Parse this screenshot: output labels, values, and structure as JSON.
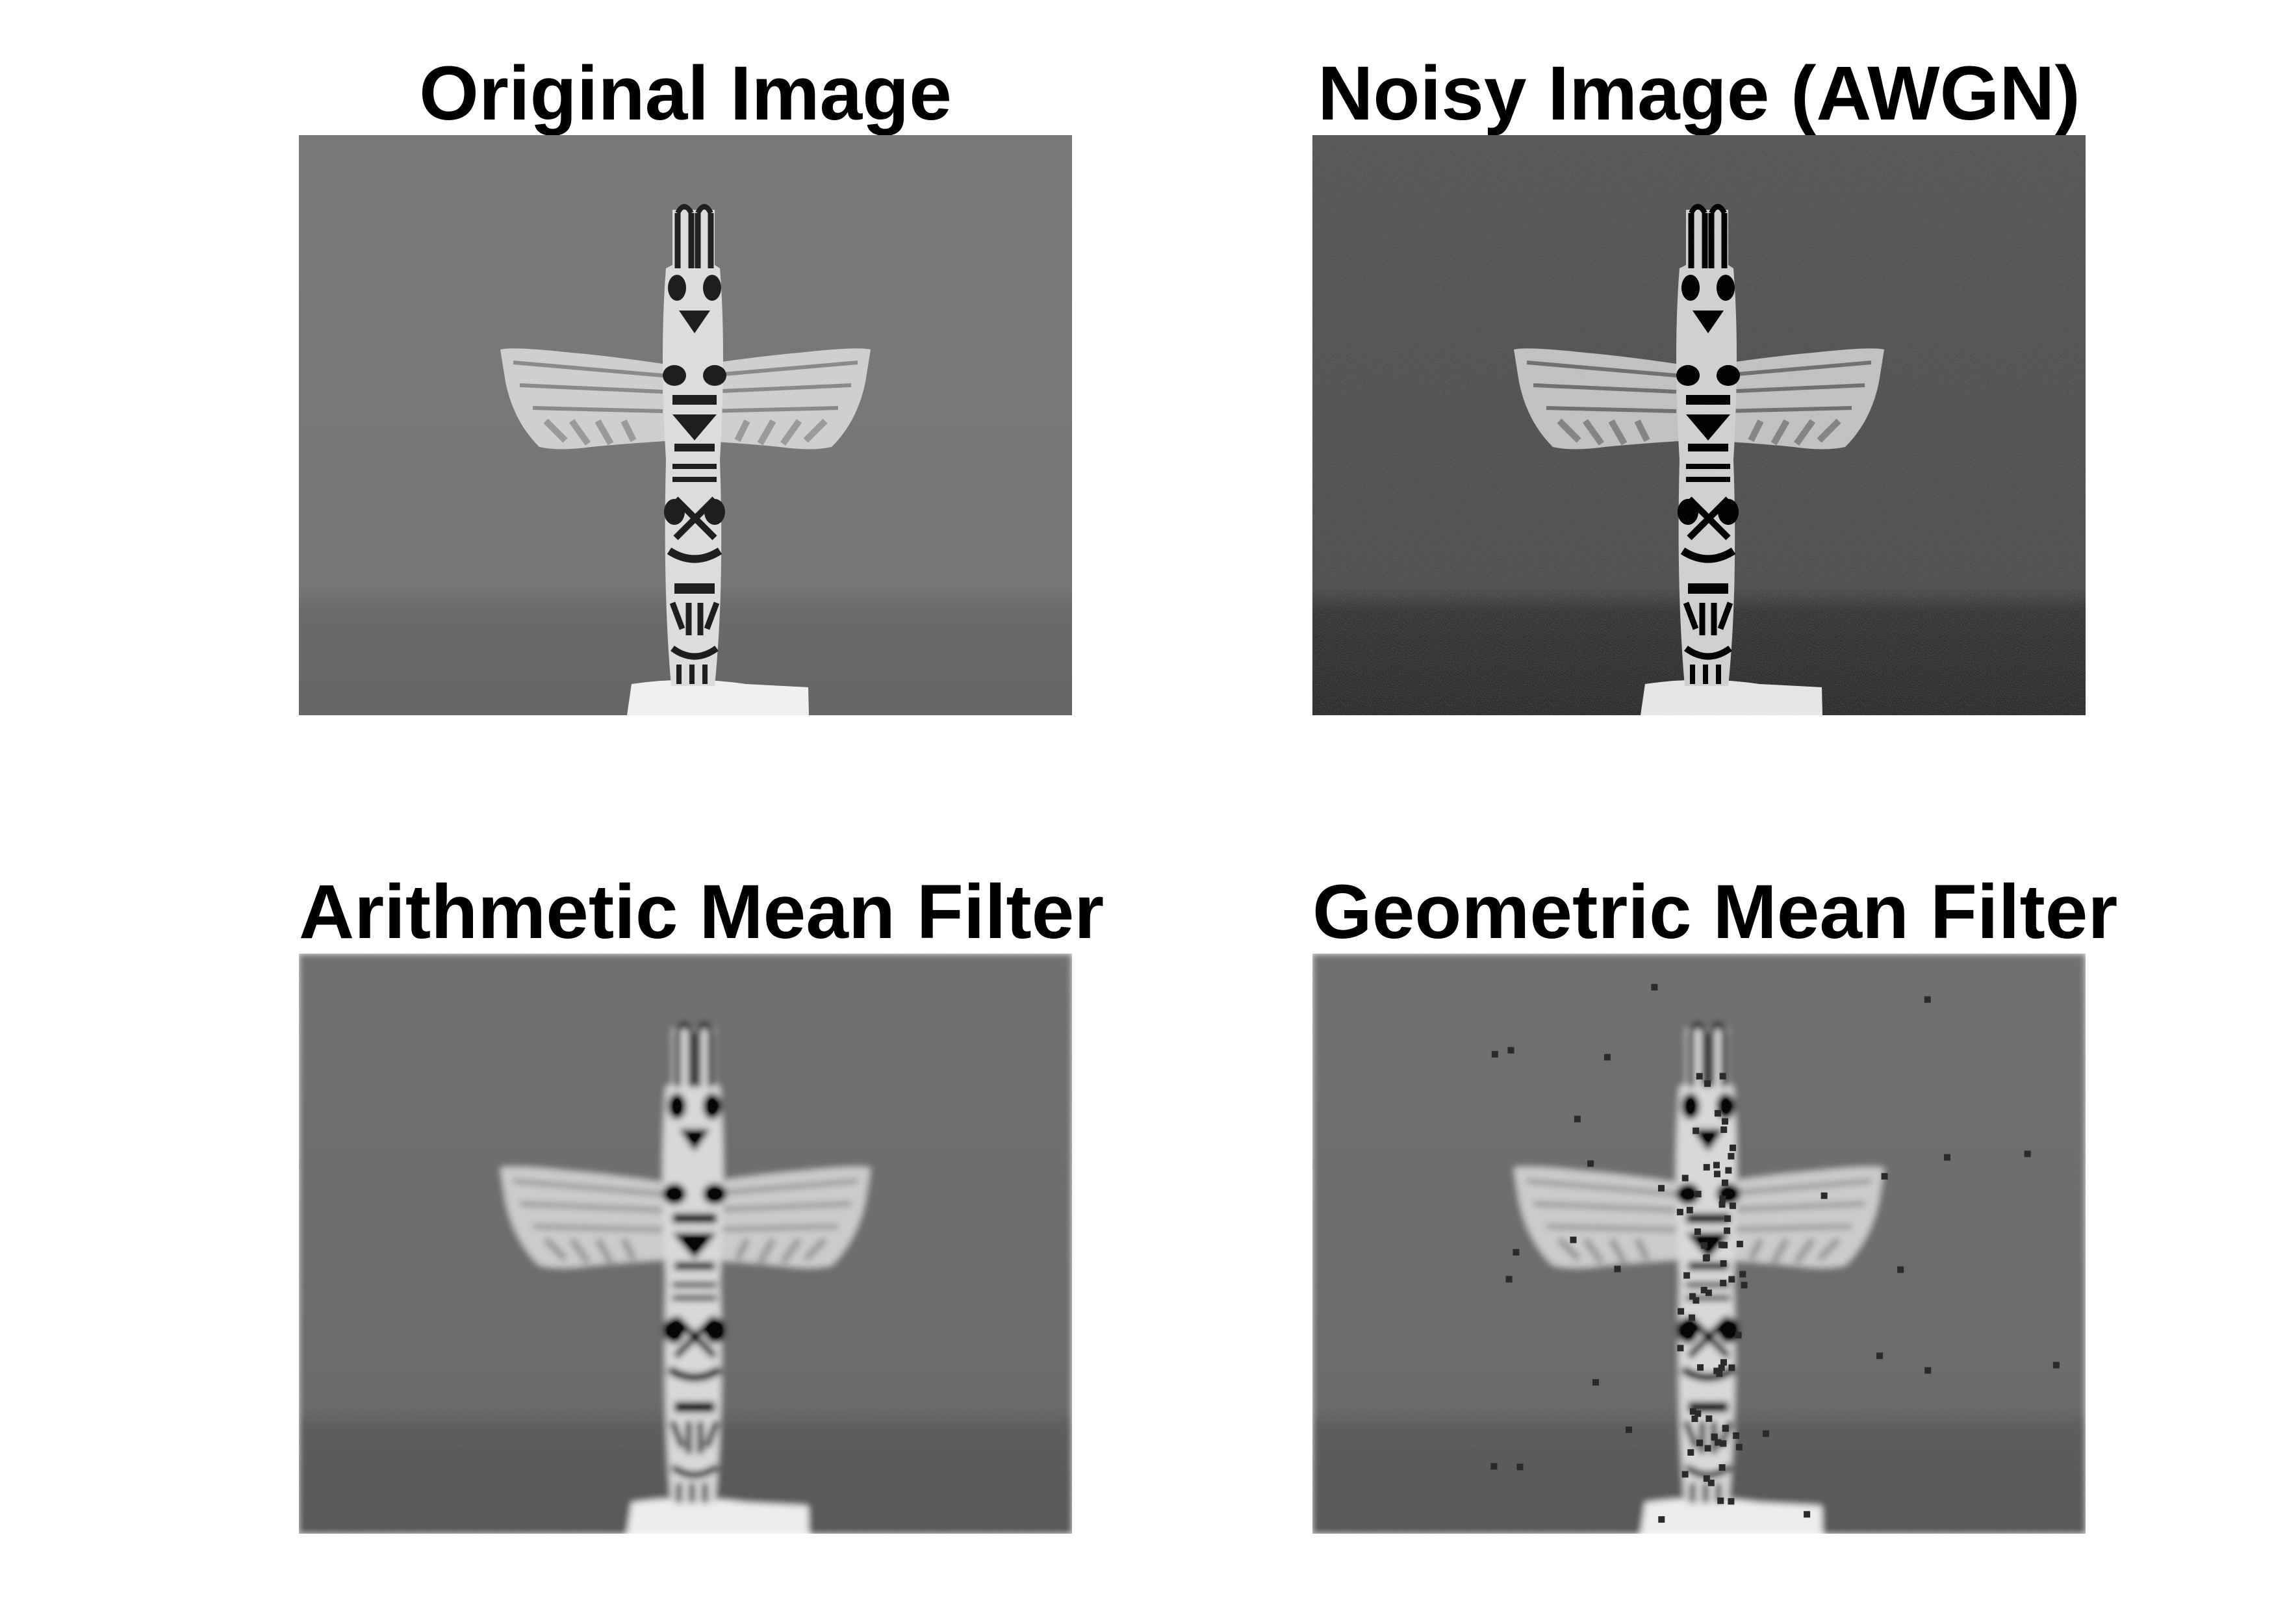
{
  "panels": [
    {
      "title": "Original Image",
      "variant": "original"
    },
    {
      "title": "Noisy Image (AWGN)",
      "variant": "noisy"
    },
    {
      "title": "Arithmetic Mean Filter",
      "variant": "arithmetic-mean"
    },
    {
      "title": "Geometric Mean Filter",
      "variant": "geometric-mean"
    }
  ],
  "colors": {
    "background": "#ffffff",
    "title_text": "#000000",
    "image_background": "#787878",
    "image_background_lower": "#6c6c6c",
    "totem_light": "#d8d8d8",
    "totem_dark": "#1e1e1e",
    "base_white": "#f2f2f2"
  },
  "image_subject": "grayscale photograph of a carved totem pole with outstretched wings"
}
